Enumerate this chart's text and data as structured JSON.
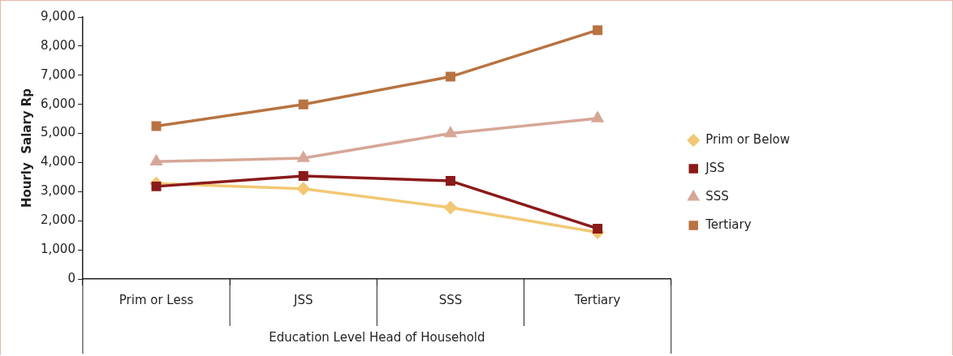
{
  "chart_data": {
    "type": "line",
    "ylabel": "Hourly  Salary Rp",
    "xlabel": "Education Level Head of Household",
    "categories": [
      "Prim or Less",
      "JSS",
      "SSS",
      "Tertiary"
    ],
    "series": [
      {
        "name": "Prim or Below",
        "color": "#f2c874",
        "marker": "diamond",
        "values": [
          3280,
          3100,
          2450,
          1600
        ]
      },
      {
        "name": "JSS",
        "color": "#8b1a1a",
        "marker": "square",
        "values": [
          3180,
          3540,
          3370,
          1730
        ]
      },
      {
        "name": "SSS",
        "color": "#d6a797",
        "marker": "triangle",
        "values": [
          4030,
          4150,
          5000,
          5520
        ]
      },
      {
        "name": "Tertiary",
        "color": "#b87341",
        "marker": "square",
        "values": [
          5250,
          6000,
          6950,
          8550
        ]
      }
    ],
    "ylim": [
      0,
      9000
    ],
    "yticks": [
      0,
      {
        "value": 1000,
        "label": "1,000"
      },
      {
        "value": 2000,
        "label": "2,000"
      },
      {
        "value": 3000,
        "label": "3,000"
      },
      {
        "value": 4000,
        "label": "4,000"
      },
      {
        "value": 5000,
        "label": "5,000"
      },
      {
        "value": 6000,
        "label": "6,000"
      },
      {
        "value": 7000,
        "label": "7,000"
      },
      {
        "value": 8000,
        "label": "8,000"
      },
      {
        "value": 9000,
        "label": "9,000"
      }
    ],
    "grid": false,
    "legend": "right",
    "line_style": "solid"
  }
}
